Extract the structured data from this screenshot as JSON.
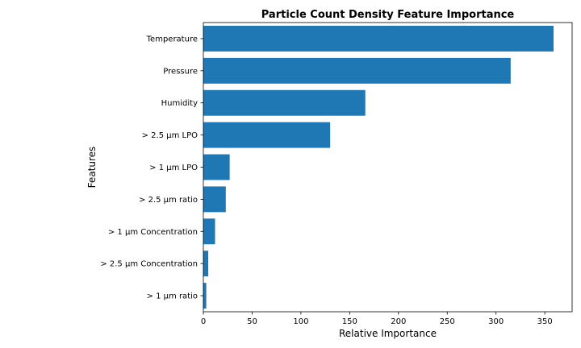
{
  "chart_data": {
    "type": "bar",
    "orientation": "horizontal",
    "title": "Particle Count Density Feature Importance",
    "xlabel": "Relative Importance",
    "ylabel": "Features",
    "categories": [
      "Temperature",
      "Pressure",
      "Humidity",
      "> 2.5 µm LPO",
      "> 1 µm LPO",
      "> 2.5 µm ratio",
      "> 1 µm Concentration",
      "> 2.5 µm Concentration",
      "> 1 µm ratio"
    ],
    "values": [
      359,
      315,
      166,
      130,
      27,
      23,
      12,
      5,
      3
    ],
    "xlim": [
      0,
      378
    ],
    "xticks": [
      0,
      50,
      100,
      150,
      200,
      250,
      300,
      350
    ],
    "bar_color": "#1f77b4",
    "grid": false
  }
}
